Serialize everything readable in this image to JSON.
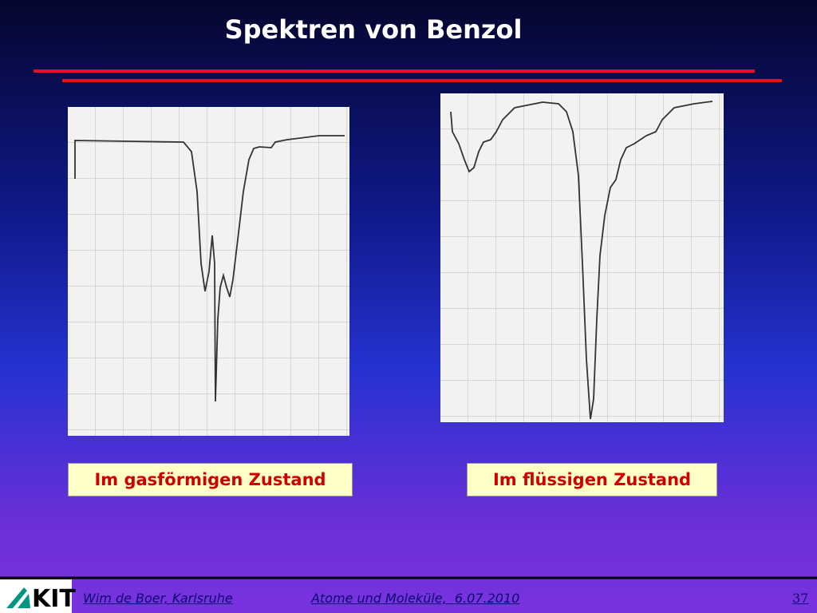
{
  "title": "Spektren von Benzol",
  "captions": [
    "Im gasförmigen Zustand",
    "Im flüssigen Zustand"
  ],
  "footer": {
    "author": "Wim de Boer, Karlsruhe",
    "topic": "Atome und Moleküle,  6.07.2010",
    "page": "37"
  }
}
